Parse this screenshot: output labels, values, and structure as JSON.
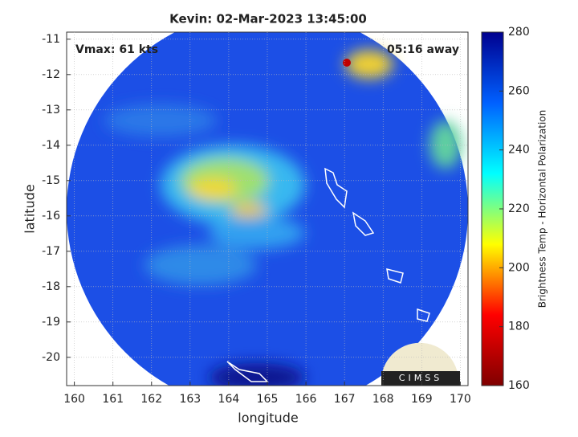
{
  "chart_data": {
    "type": "image",
    "title": "Kevin: 02-Mar-2023 13:45:00",
    "annotations": [
      "Vmax: 61 kts",
      "05:16 away"
    ],
    "xlabel": "longitude",
    "ylabel": "latitude",
    "xlim": [
      159.8,
      170.2
    ],
    "xticks": [
      160,
      161,
      162,
      163,
      164,
      165,
      166,
      167,
      168,
      169,
      170
    ],
    "ylim": [
      -20.8,
      -10.8
    ],
    "yticks": [
      -11,
      -12,
      -13,
      -14,
      -15,
      -16,
      -17,
      -18,
      -19,
      -20
    ],
    "grid": true,
    "colorbar": {
      "label": "Brightness Temp - Horizontal Polarization",
      "lim": [
        160,
        280
      ],
      "ticks": [
        160,
        180,
        200,
        220,
        240,
        260,
        280
      ],
      "colors": [
        "#7f0000",
        "#ff0000",
        "#ffff00",
        "#00ffff",
        "#0060ff",
        "#00008f"
      ]
    },
    "logo_text": "CIMSS"
  }
}
